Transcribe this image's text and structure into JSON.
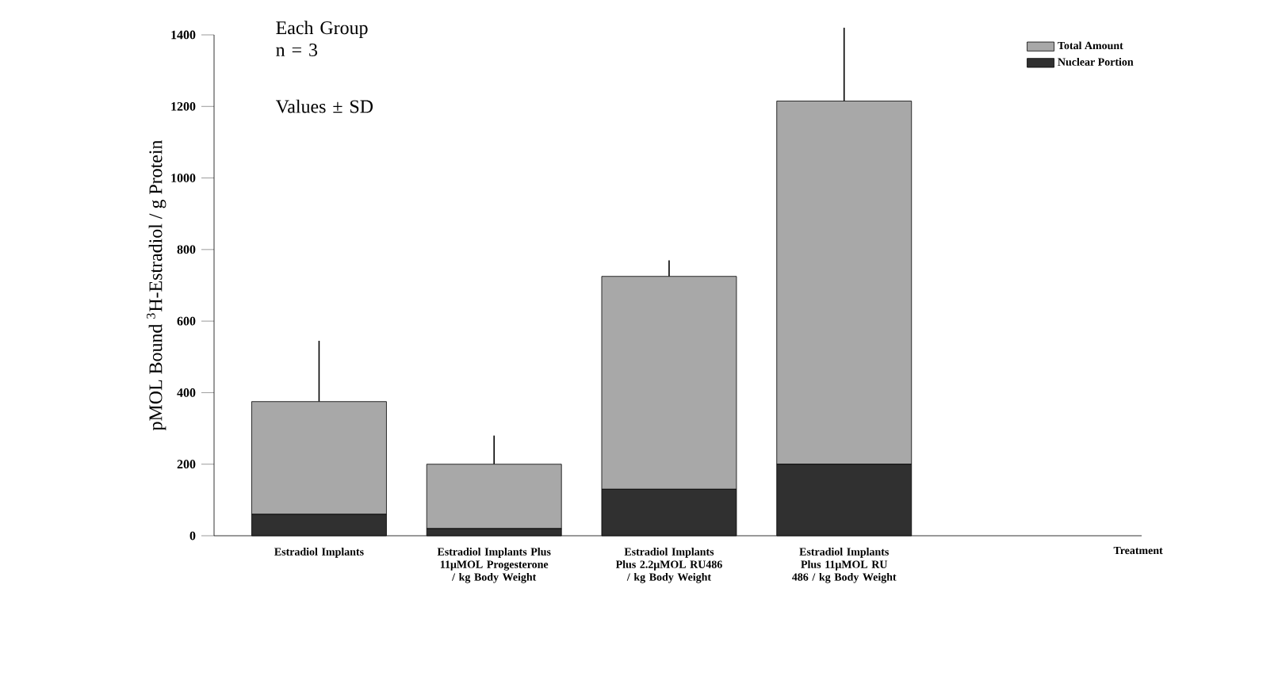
{
  "chart_data": {
    "type": "bar",
    "stacked": true,
    "ylabel": "pMOL Bound $^{3}$H-Estradiol / g Protein",
    "annotations": [
      "Each Group n = 3",
      "Values ± SD",
      "Treatment"
    ],
    "categories": [
      "Estradiol Implants",
      "Estradiol Implants Plus 11μMOL Progesterone / kg Body Weight",
      "Estradiol Implants Plus 2.2μMOL RU486 / kg Body Weight",
      "Estradiol Implants Plus 11μMOL RU 486 / kg Body Weight"
    ],
    "series": [
      {
        "name": "Nuclear Portion",
        "color": "#303030",
        "values": [
          60,
          20,
          130,
          200
        ]
      },
      {
        "name": "Total Amount",
        "color": "#a8a8a8",
        "values": [
          315,
          180,
          595,
          1015
        ],
        "errors": [
          [
            375,
            545
          ],
          [
            200,
            280
          ],
          [
            725,
            770
          ],
          [
            1215,
            1420
          ]
        ]
      }
    ],
    "ylim": [
      0,
      1400
    ],
    "yticks": [
      0,
      200,
      400,
      600,
      800,
      1000,
      1200,
      1400
    ],
    "legend": "top right",
    "grid": false
  }
}
